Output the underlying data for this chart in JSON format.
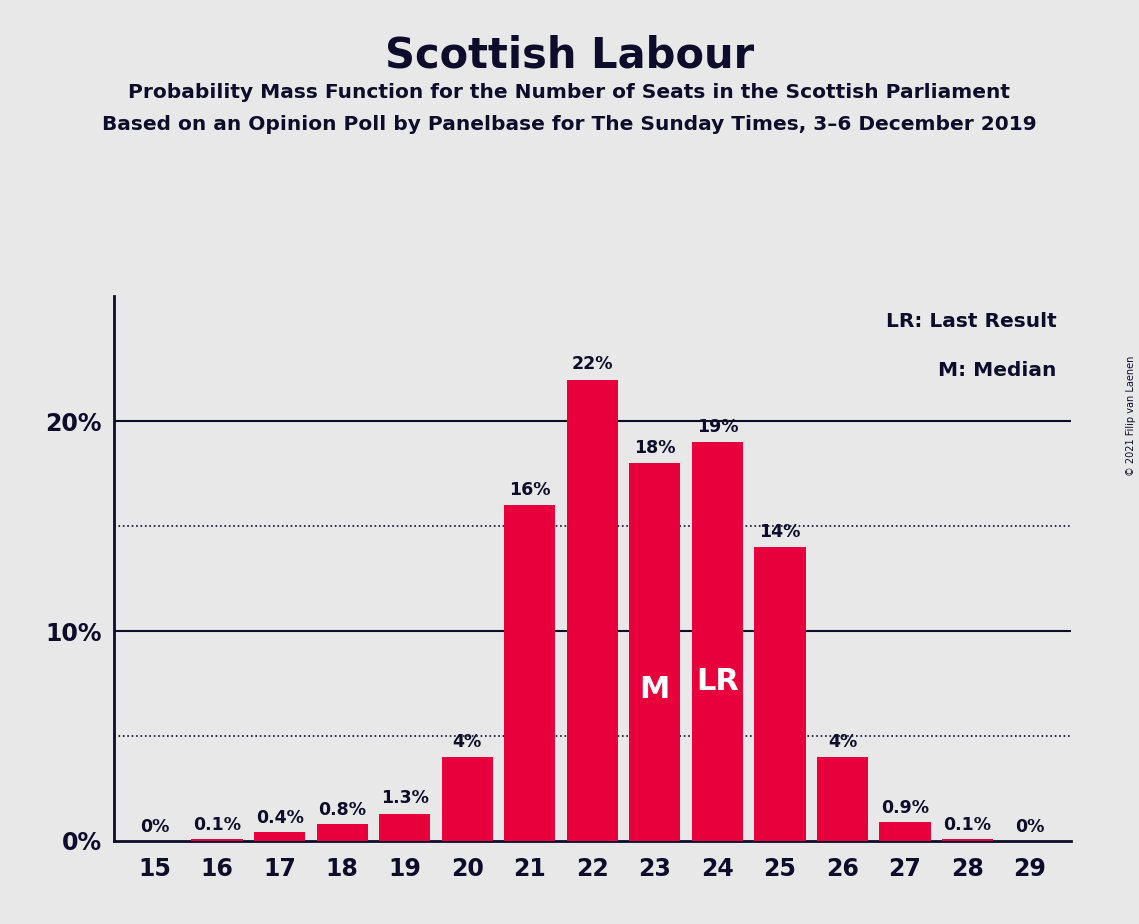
{
  "title": "Scottish Labour",
  "subtitle1": "Probability Mass Function for the Number of Seats in the Scottish Parliament",
  "subtitle2": "Based on an Opinion Poll by Panelbase for The Sunday Times, 3–6 December 2019",
  "copyright": "© 2021 Filip van Laenen",
  "seats": [
    15,
    16,
    17,
    18,
    19,
    20,
    21,
    22,
    23,
    24,
    25,
    26,
    27,
    28,
    29
  ],
  "probabilities": [
    0.0,
    0.1,
    0.4,
    0.8,
    1.3,
    4.0,
    16.0,
    22.0,
    18.0,
    19.0,
    14.0,
    4.0,
    0.9,
    0.1,
    0.0
  ],
  "labels": [
    "0%",
    "0.1%",
    "0.4%",
    "0.8%",
    "1.3%",
    "4%",
    "16%",
    "22%",
    "18%",
    "19%",
    "14%",
    "4%",
    "0.9%",
    "0.1%",
    "0%"
  ],
  "bar_color": "#E8003C",
  "background_color": "#E8E8E8",
  "text_color": "#0D0D2B",
  "median_seat": 23,
  "last_result_seat": 24,
  "legend_lr": "LR: Last Result",
  "legend_m": "M: Median",
  "solid_line_values": [
    10.0,
    20.0
  ],
  "dotted_line_values": [
    5.0,
    15.0
  ],
  "ylim": [
    0,
    26
  ],
  "ytick_values": [
    0,
    10,
    20
  ],
  "ytick_labels": [
    "0%",
    "10%",
    "20%"
  ]
}
